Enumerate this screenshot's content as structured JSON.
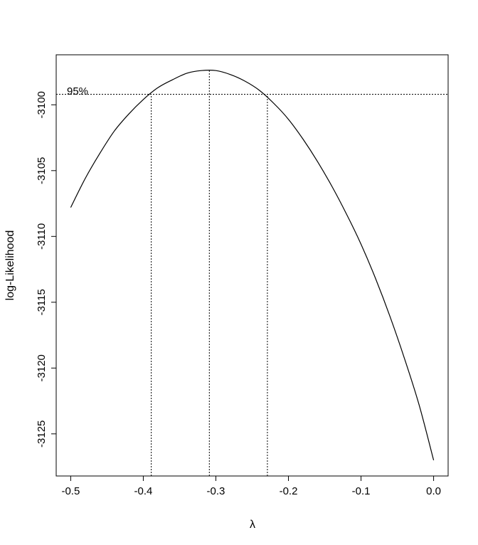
{
  "chart_data": {
    "type": "line",
    "title": "",
    "xlabel": "λ",
    "ylabel": "log-Likelihood",
    "xlim": [
      -0.52,
      0.02
    ],
    "ylim": [
      -3128.2,
      -3096.2
    ],
    "x_ticks": [
      -0.5,
      -0.4,
      -0.3,
      -0.2,
      -0.1,
      0.0
    ],
    "x_tick_labels": [
      "-0.5",
      "-0.4",
      "-0.3",
      "-0.2",
      "-0.1",
      "0.0"
    ],
    "y_ticks": [
      -3125,
      -3120,
      -3115,
      -3110,
      -3105,
      -3100
    ],
    "y_tick_labels": [
      "-3125",
      "-3120",
      "-3115",
      "-3110",
      "-3105",
      "-3100"
    ],
    "grid": false,
    "legend": "none",
    "line_color": "#000000",
    "series": [
      {
        "x": [
          -0.5,
          -0.48,
          -0.46,
          -0.44,
          -0.42,
          -0.4,
          -0.38,
          -0.36,
          -0.34,
          -0.32,
          -0.3,
          -0.28,
          -0.26,
          -0.24,
          -0.22,
          -0.2,
          -0.18,
          -0.16,
          -0.14,
          -0.12,
          -0.1,
          -0.08,
          -0.06,
          -0.04,
          -0.02,
          0.0
        ],
        "y": [
          -3107.8,
          -3105.6,
          -3103.7,
          -3102.0,
          -3100.7,
          -3099.6,
          -3098.7,
          -3098.1,
          -3097.6,
          -3097.4,
          -3097.4,
          -3097.7,
          -3098.2,
          -3098.9,
          -3099.9,
          -3101.1,
          -3102.6,
          -3104.3,
          -3106.2,
          -3108.3,
          -3110.6,
          -3113.2,
          -3116.1,
          -3119.3,
          -3122.8,
          -3127.0
        ]
      }
    ],
    "annotations": {
      "ci_label": "95%",
      "ci_level_y": -3099.2,
      "vlines_x": [
        -0.389,
        -0.309,
        -0.229
      ]
    }
  }
}
